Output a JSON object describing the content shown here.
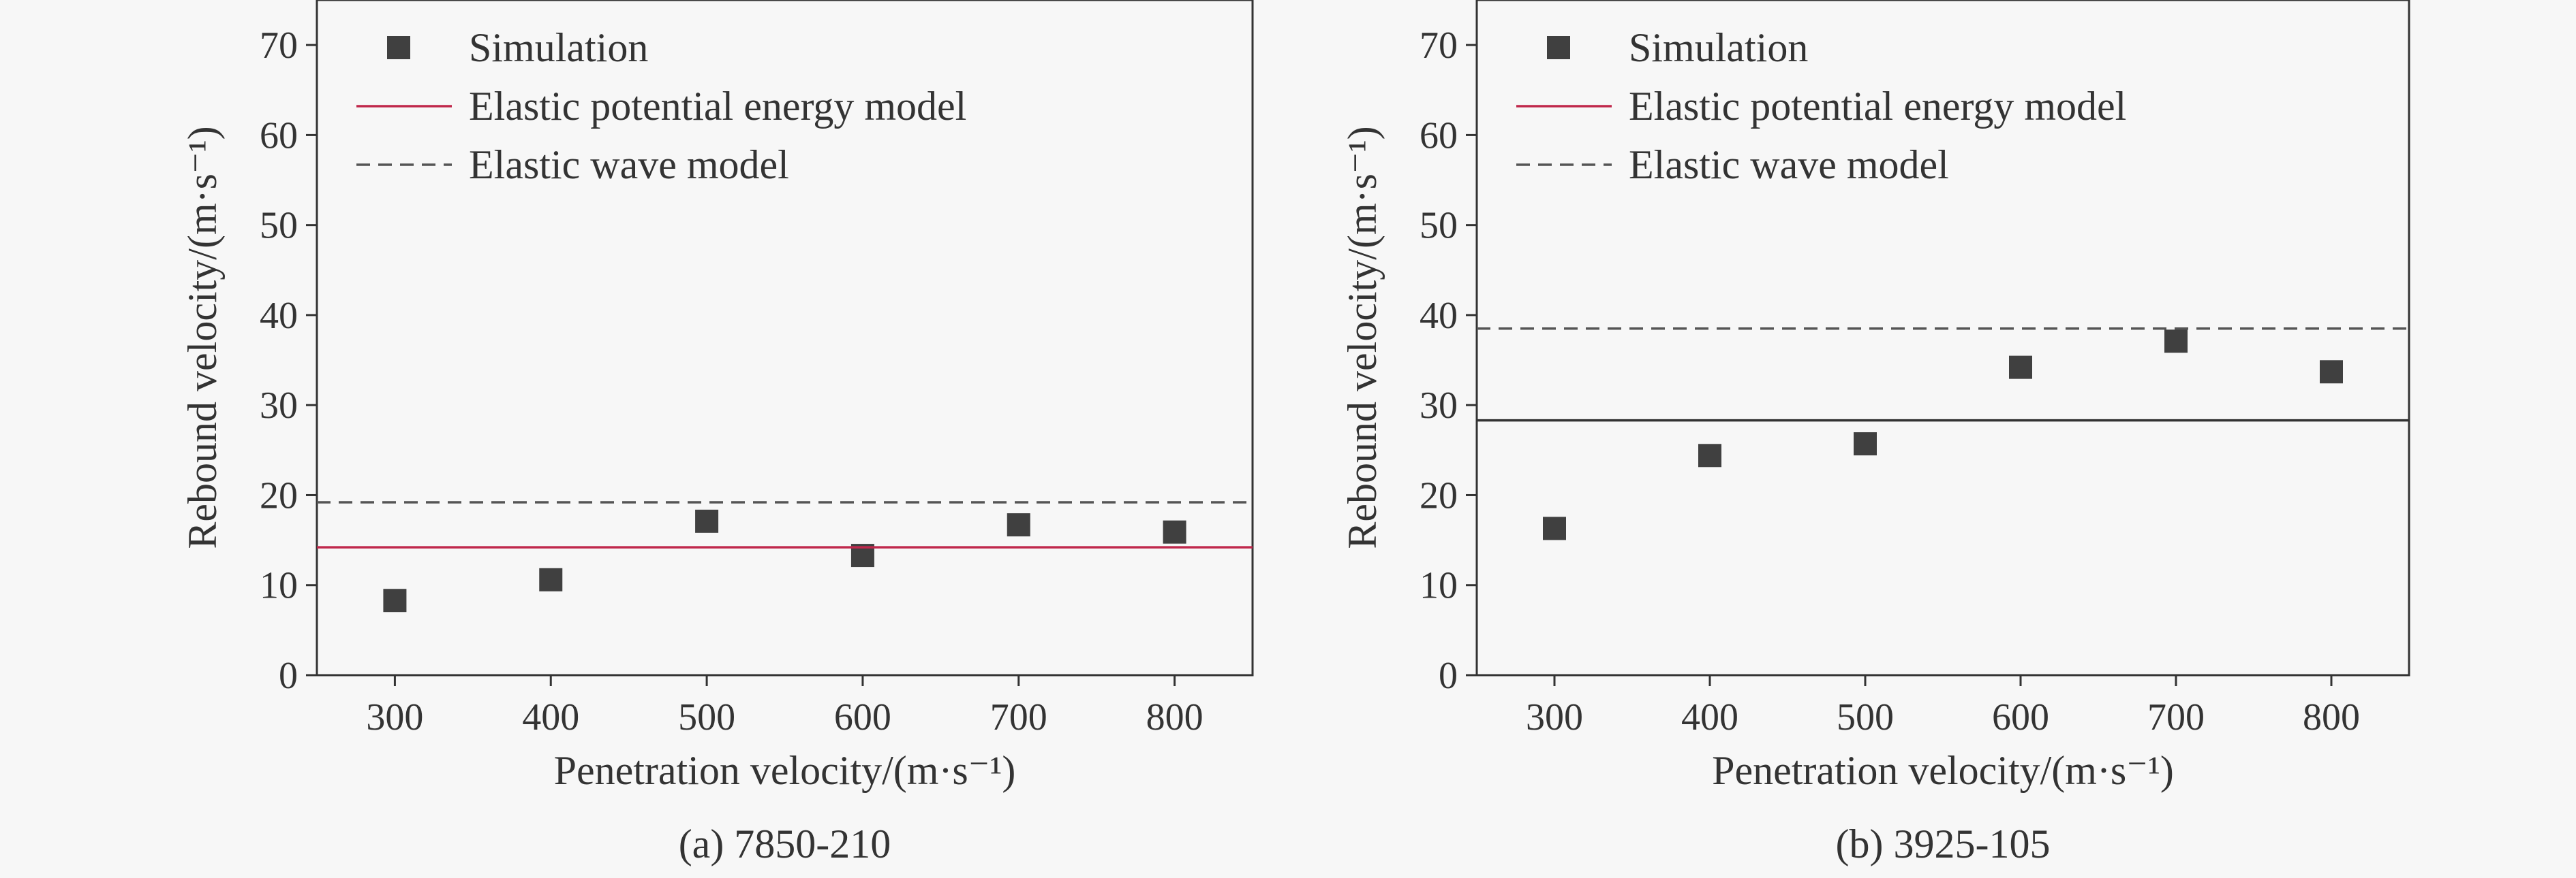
{
  "chart_data": [
    {
      "type": "scatter",
      "caption": "(a) 7850-210",
      "xlabel": "Penetration velocity/(m·s⁻¹)",
      "ylabel": "Rebound velocity/(m·s⁻¹)",
      "xlim": [
        250,
        850
      ],
      "ylim": [
        0,
        75
      ],
      "xticks": [
        300,
        400,
        500,
        600,
        700,
        800
      ],
      "yticks": [
        0,
        10,
        20,
        30,
        40,
        50,
        60,
        70
      ],
      "grid": false,
      "legend_position": "top-left",
      "series": [
        {
          "name": "Simulation",
          "kind": "markers",
          "color": "#404040",
          "x": [
            300,
            400,
            500,
            600,
            700,
            800
          ],
          "y": [
            8.3,
            10.6,
            17.1,
            13.3,
            16.7,
            15.9
          ]
        },
        {
          "name": "Elastic potential energy model",
          "kind": "hline",
          "color": "#c0284c",
          "y": 14.2
        },
        {
          "name": "Elastic wave model",
          "kind": "hline-dashed",
          "color": "#555555",
          "y": 19.2
        }
      ]
    },
    {
      "type": "scatter",
      "caption": "(b) 3925-105",
      "xlabel": "Penetration velocity/(m·s⁻¹)",
      "ylabel": "Rebound velocity/(m·s⁻¹)",
      "xlim": [
        250,
        850
      ],
      "ylim": [
        0,
        75
      ],
      "xticks": [
        300,
        400,
        500,
        600,
        700,
        800
      ],
      "yticks": [
        0,
        10,
        20,
        30,
        40,
        50,
        60,
        70
      ],
      "grid": false,
      "legend_position": "top-left",
      "series": [
        {
          "name": "Simulation",
          "kind": "markers",
          "color": "#404040",
          "x": [
            300,
            400,
            500,
            600,
            700,
            800
          ],
          "y": [
            16.3,
            24.4,
            25.7,
            34.2,
            37.1,
            33.7
          ]
        },
        {
          "name": "Elastic potential energy model",
          "kind": "hline",
          "color": "#333333",
          "y": 28.3
        },
        {
          "name": "Elastic wave model",
          "kind": "hline-dashed",
          "color": "#555555",
          "y": 38.5
        }
      ],
      "legend_line_color": "#c0284c"
    }
  ]
}
